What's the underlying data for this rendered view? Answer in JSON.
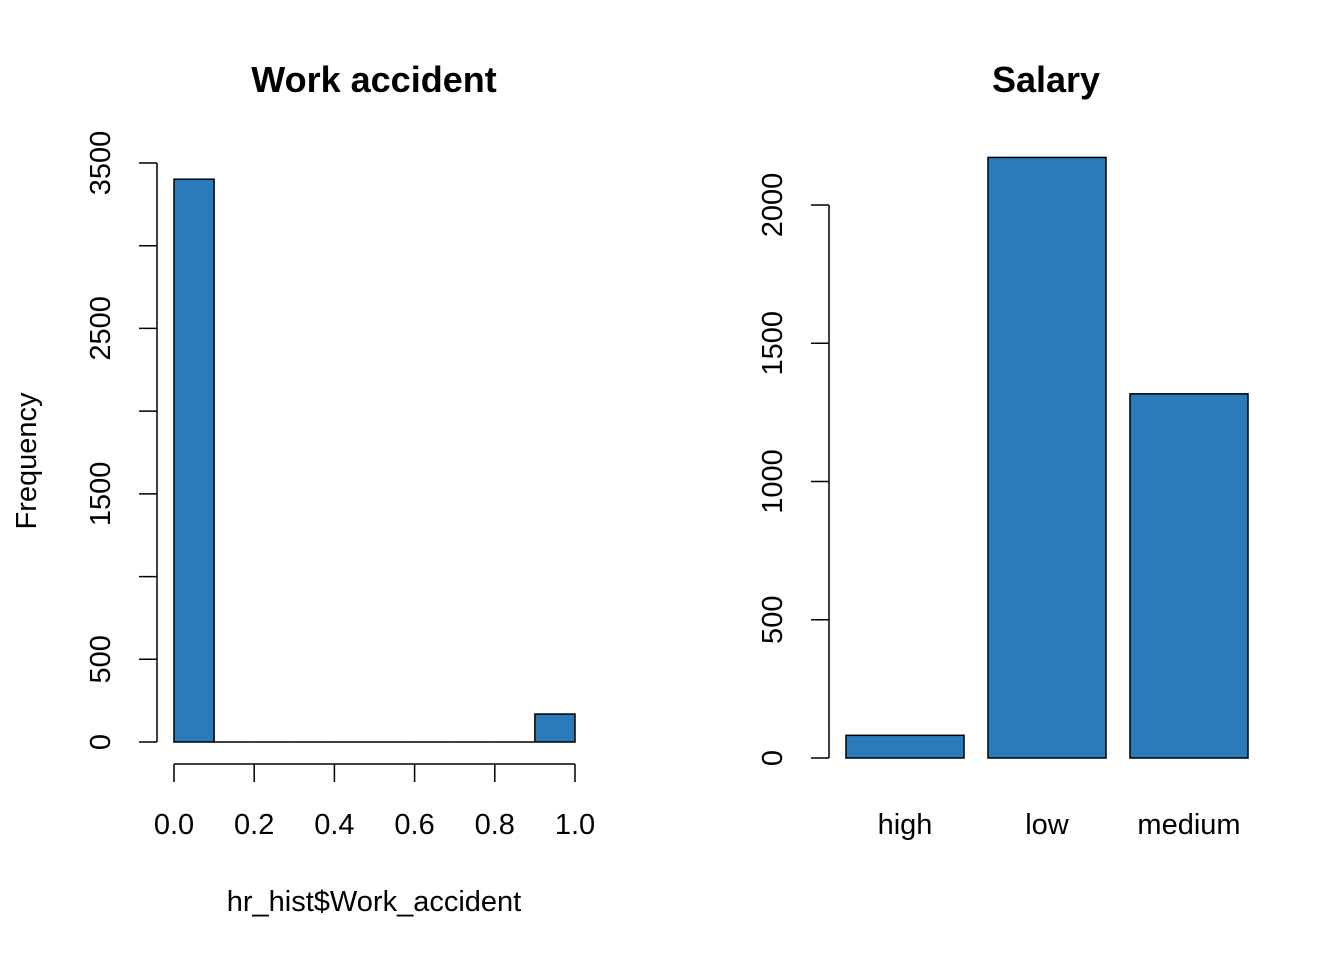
{
  "chart_data": [
    {
      "type": "bar",
      "subtype": "histogram",
      "title": "Work accident",
      "xlabel": "hr_hist$Work_accident",
      "ylabel": "Frequency",
      "xlim": [
        0,
        1
      ],
      "ylim": [
        0,
        3500
      ],
      "xticks": [
        "0.0",
        "0.2",
        "0.4",
        "0.6",
        "0.8",
        "1.0"
      ],
      "yticks": [
        "0",
        "500",
        "1500",
        "2500",
        "3500"
      ],
      "bins": [
        {
          "x0": 0.0,
          "x1": 0.1,
          "value": 3402
        },
        {
          "x0": 0.1,
          "x1": 0.2,
          "value": 0
        },
        {
          "x0": 0.2,
          "x1": 0.3,
          "value": 0
        },
        {
          "x0": 0.3,
          "x1": 0.4,
          "value": 0
        },
        {
          "x0": 0.4,
          "x1": 0.5,
          "value": 0
        },
        {
          "x0": 0.5,
          "x1": 0.6,
          "value": 0
        },
        {
          "x0": 0.6,
          "x1": 0.7,
          "value": 0
        },
        {
          "x0": 0.7,
          "x1": 0.8,
          "value": 0
        },
        {
          "x0": 0.8,
          "x1": 0.9,
          "value": 0
        },
        {
          "x0": 0.9,
          "x1": 1.0,
          "value": 169
        }
      ],
      "color": "#2b7bba",
      "grid": false
    },
    {
      "type": "bar",
      "title": "Salary",
      "xlabel": "",
      "ylabel": "",
      "categories": [
        "high",
        "low",
        "medium"
      ],
      "values": [
        82,
        2172,
        1317
      ],
      "ylim": [
        0,
        2000
      ],
      "yticks": [
        "0",
        "500",
        "1000",
        "1500",
        "2000"
      ],
      "color": "#2b7bba",
      "grid": false
    }
  ]
}
